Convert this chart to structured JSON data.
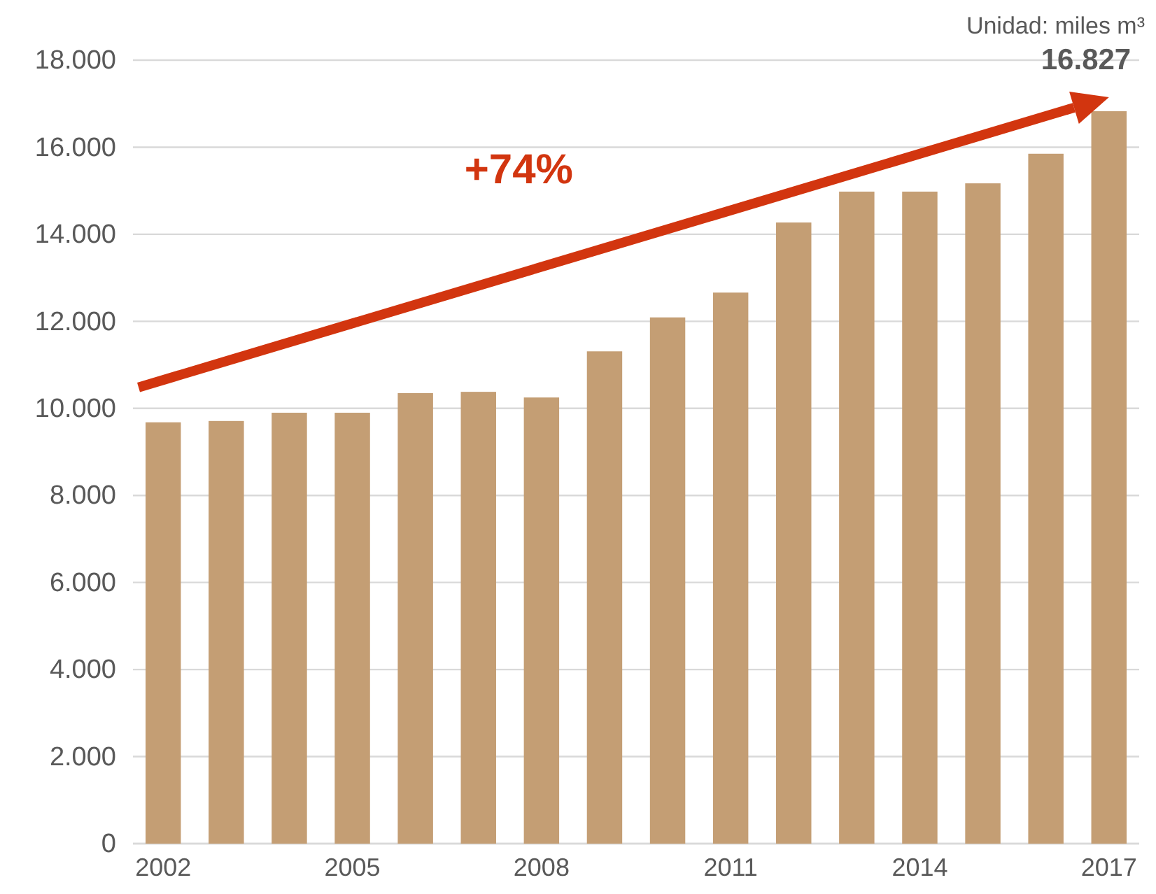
{
  "chart_data": {
    "type": "bar",
    "categories": [
      "2002",
      null,
      null,
      "2005",
      null,
      null,
      "2008",
      null,
      null,
      "2011",
      null,
      null,
      "2014",
      null,
      null,
      "2017"
    ],
    "values": [
      9680,
      9710,
      9900,
      9900,
      10350,
      10380,
      10250,
      11310,
      12090,
      12660,
      14270,
      14980,
      14980,
      15170,
      15850,
      16827
    ],
    "value_labels": [
      null,
      null,
      null,
      null,
      null,
      null,
      null,
      null,
      null,
      null,
      null,
      null,
      null,
      null,
      null,
      "16.827"
    ],
    "color": "#c49e74",
    "ylim": [
      0,
      18000
    ],
    "yticks": [
      0,
      {
        "value": 2000,
        "label": "2.000"
      },
      {
        "value": 4000,
        "label": "4.000"
      },
      {
        "value": 6000,
        "label": "6.000"
      },
      {
        "value": 8000,
        "label": "8.000"
      },
      {
        "value": 10000,
        "label": "10.000"
      },
      {
        "value": 12000,
        "label": "12.000"
      },
      {
        "value": 14000,
        "label": "14.000"
      },
      {
        "value": 16000,
        "label": "16.000"
      },
      {
        "value": 18000,
        "label": "18.000"
      }
    ],
    "grid": "y",
    "annotations": [
      "Unidad: miles m³",
      "+74%"
    ]
  }
}
